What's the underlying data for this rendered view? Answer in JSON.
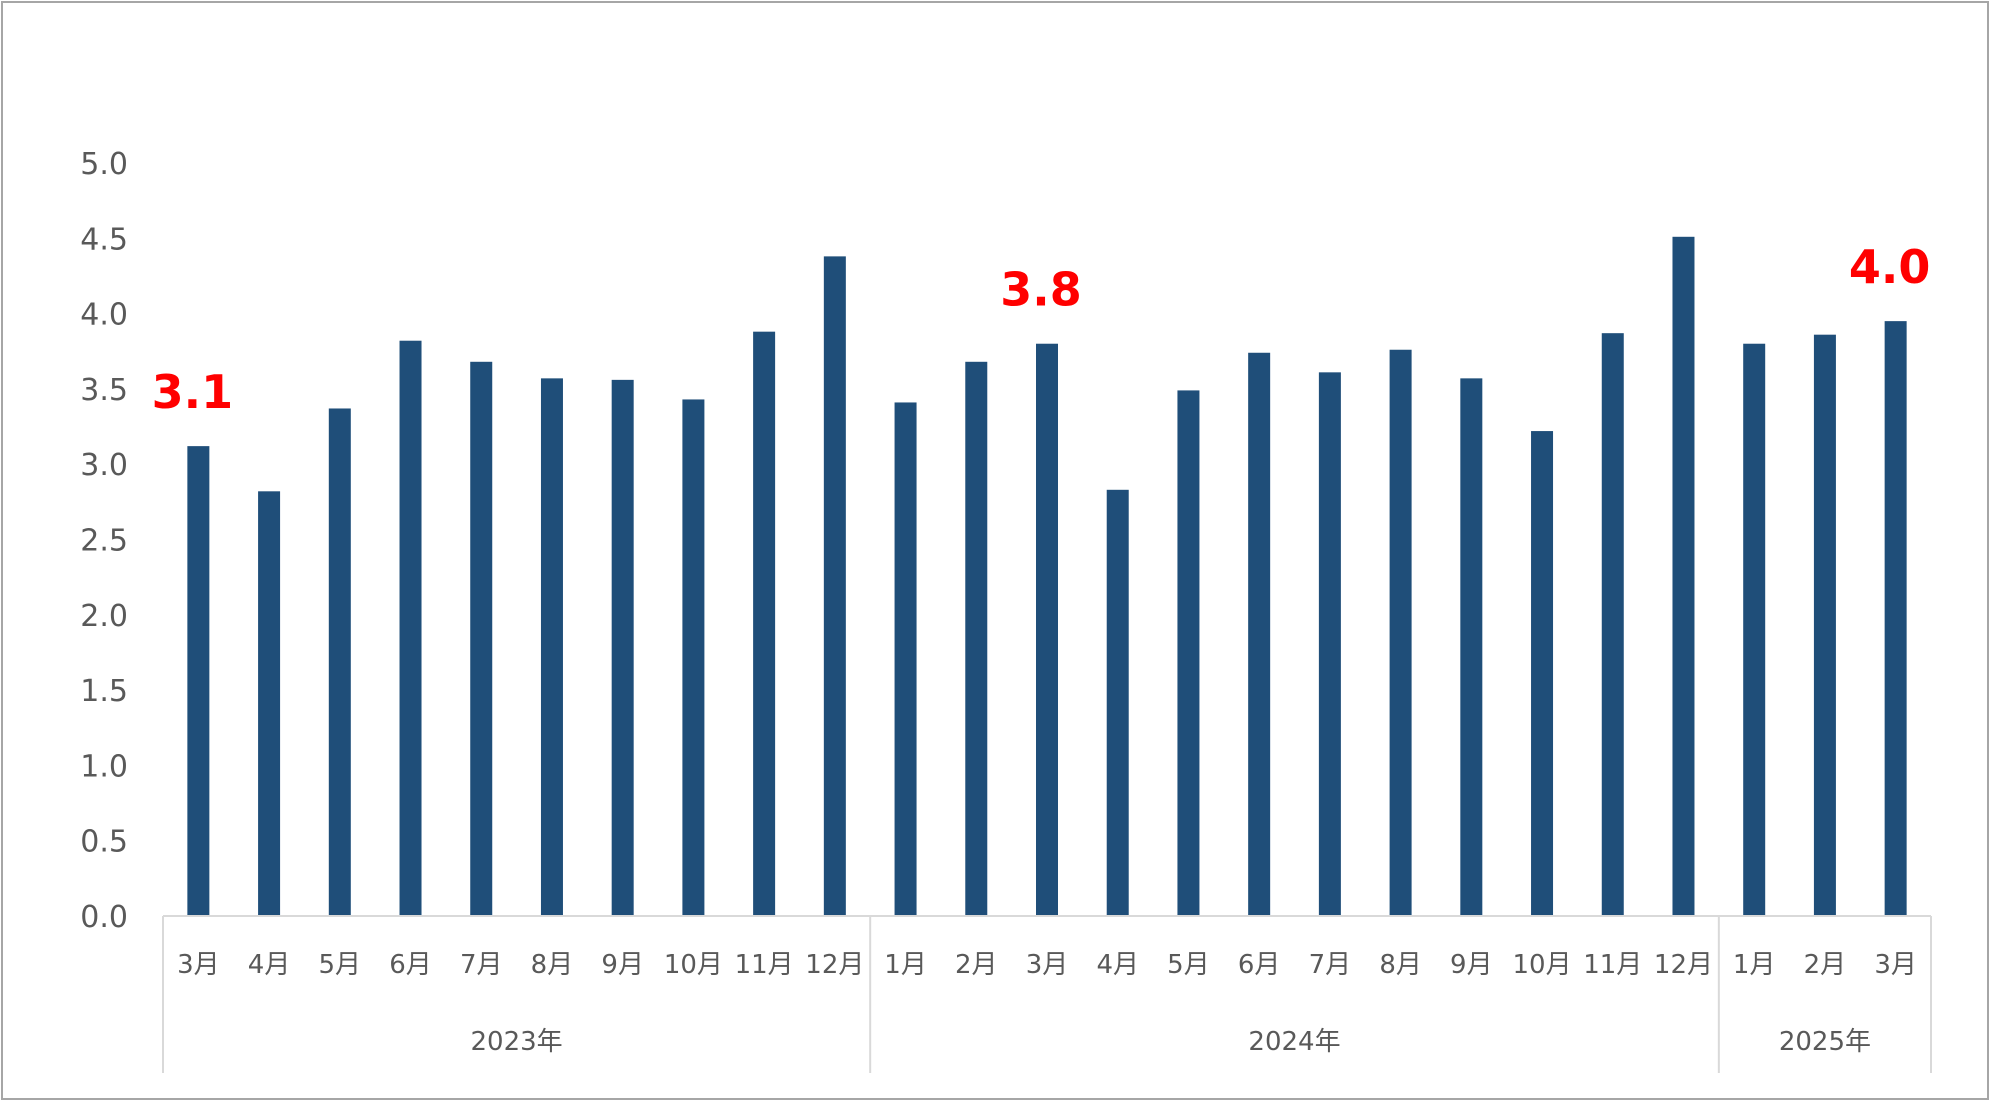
{
  "chart_data": {
    "type": "bar",
    "title": "",
    "xlabel": "",
    "ylabel": "",
    "ylim": [
      0,
      5.0
    ],
    "yticks": [
      "0.0",
      "0.5",
      "1.0",
      "1.5",
      "2.0",
      "2.5",
      "3.0",
      "3.5",
      "4.0",
      "4.5",
      "5.0"
    ],
    "grid": false,
    "legend": "none",
    "categories": [
      "3月",
      "4月",
      "5月",
      "6月",
      "7月",
      "8月",
      "9月",
      "10月",
      "11月",
      "12月",
      "1月",
      "2月",
      "3月",
      "4月",
      "5月",
      "6月",
      "7月",
      "8月",
      "9月",
      "10月",
      "11月",
      "12月",
      "1月",
      "2月",
      "3月"
    ],
    "values": [
      3.12,
      2.82,
      3.37,
      3.82,
      3.68,
      3.57,
      3.56,
      3.43,
      3.88,
      4.38,
      3.41,
      3.68,
      3.8,
      2.83,
      3.49,
      3.74,
      3.61,
      3.76,
      3.57,
      3.22,
      3.87,
      4.51,
      3.8,
      3.86,
      3.95
    ],
    "year_groups": [
      {
        "label": "2023年",
        "count": 10
      },
      {
        "label": "2024年",
        "count": 12
      },
      {
        "label": "2025年",
        "count": 3
      }
    ],
    "annotations": [
      {
        "index": 0,
        "text": "3.1"
      },
      {
        "index": 12,
        "text": "3.8"
      },
      {
        "index": 24,
        "text": "4.0"
      }
    ],
    "colors": {
      "bar": "#1f4e79",
      "annotation": "#ff0000",
      "axis": "#d9d9d9",
      "text": "#595959"
    }
  }
}
